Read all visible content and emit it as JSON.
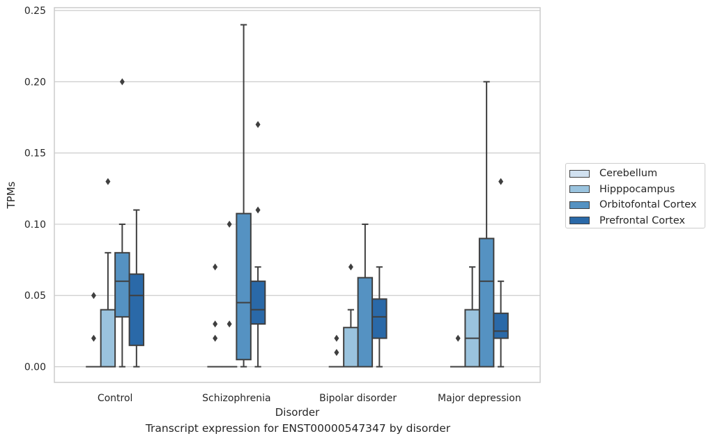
{
  "caption": "Transcript expression for ENST00000547347 by disorder",
  "legend": {
    "items": [
      {
        "label": "Cerebellum",
        "color": "#d1e1f0"
      },
      {
        "label": "Hipppocampus",
        "color": "#9ac3de"
      },
      {
        "label": "Orbitofontal Cortex",
        "color": "#5592c2"
      },
      {
        "label": "Prefrontal Cortex",
        "color": "#2a69a8"
      }
    ]
  },
  "chart_data": {
    "type": "box",
    "xlabel": "Disorder",
    "ylabel": "TPMs",
    "ylim": [
      -0.011,
      0.252
    ],
    "yticks": [
      "0.00",
      "0.05",
      "0.10",
      "0.15",
      "0.20",
      "0.25"
    ],
    "ytick_values": [
      0.0,
      0.05,
      0.1,
      0.15,
      0.2,
      0.25
    ],
    "grid": true,
    "legend_position": "right",
    "categories": [
      "Control",
      "Schizophrenia",
      "Bipolar disorder",
      "Major depression"
    ],
    "series": [
      {
        "name": "Cerebellum",
        "color": "#d1e1f0",
        "boxes": [
          {
            "q1": 0,
            "median": 0,
            "q3": 0,
            "whisker_low": 0,
            "whisker_high": 0,
            "outliers": [
              0.02,
              0.05
            ]
          },
          {
            "q1": 0,
            "median": 0,
            "q3": 0,
            "whisker_low": 0,
            "whisker_high": 0,
            "outliers": [
              0.02,
              0.03,
              0.07
            ]
          },
          {
            "q1": 0,
            "median": 0,
            "q3": 0,
            "whisker_low": 0,
            "whisker_high": 0,
            "outliers": [
              0.01,
              0.02
            ]
          },
          {
            "q1": 0,
            "median": 0,
            "q3": 0,
            "whisker_low": 0,
            "whisker_high": 0,
            "outliers": [
              0.02
            ]
          }
        ]
      },
      {
        "name": "Hipppocampus",
        "color": "#9ac3de",
        "boxes": [
          {
            "q1": 0,
            "median": 0,
            "q3": 0.04,
            "whisker_low": 0,
            "whisker_high": 0.08,
            "outliers": [
              0.13
            ]
          },
          {
            "q1": 0,
            "median": 0,
            "q3": 0,
            "whisker_low": 0,
            "whisker_high": 0,
            "outliers": [
              0.03,
              0.1
            ]
          },
          {
            "q1": 0,
            "median": 0,
            "q3": 0.0275,
            "whisker_low": 0,
            "whisker_high": 0.04,
            "outliers": [
              0.07
            ]
          },
          {
            "q1": 0,
            "median": 0.02,
            "q3": 0.04,
            "whisker_low": 0,
            "whisker_high": 0.07,
            "outliers": []
          }
        ]
      },
      {
        "name": "Orbitofontal Cortex",
        "color": "#5592c2",
        "boxes": [
          {
            "q1": 0.035,
            "median": 0.06,
            "q3": 0.08,
            "whisker_low": 0,
            "whisker_high": 0.1,
            "outliers": [
              0.2
            ]
          },
          {
            "q1": 0.005,
            "median": 0.045,
            "q3": 0.1075,
            "whisker_low": 0,
            "whisker_high": 0.24,
            "outliers": []
          },
          {
            "q1": 0,
            "median": 0,
            "q3": 0.0625,
            "whisker_low": 0,
            "whisker_high": 0.1,
            "outliers": []
          },
          {
            "q1": 0,
            "median": 0.06,
            "q3": 0.09,
            "whisker_low": 0,
            "whisker_high": 0.2,
            "outliers": []
          }
        ]
      },
      {
        "name": "Prefrontal Cortex",
        "color": "#2a69a8",
        "boxes": [
          {
            "q1": 0.015,
            "median": 0.05,
            "q3": 0.065,
            "whisker_low": 0,
            "whisker_high": 0.11,
            "outliers": []
          },
          {
            "q1": 0.03,
            "median": 0.04,
            "q3": 0.06,
            "whisker_low": 0,
            "whisker_high": 0.07,
            "outliers": [
              0.11,
              0.17
            ]
          },
          {
            "q1": 0.02,
            "median": 0.035,
            "q3": 0.0475,
            "whisker_low": 0,
            "whisker_high": 0.07,
            "outliers": []
          },
          {
            "q1": 0.02,
            "median": 0.025,
            "q3": 0.0375,
            "whisker_low": 0,
            "whisker_high": 0.06,
            "outliers": [
              0.13
            ]
          }
        ]
      }
    ]
  }
}
